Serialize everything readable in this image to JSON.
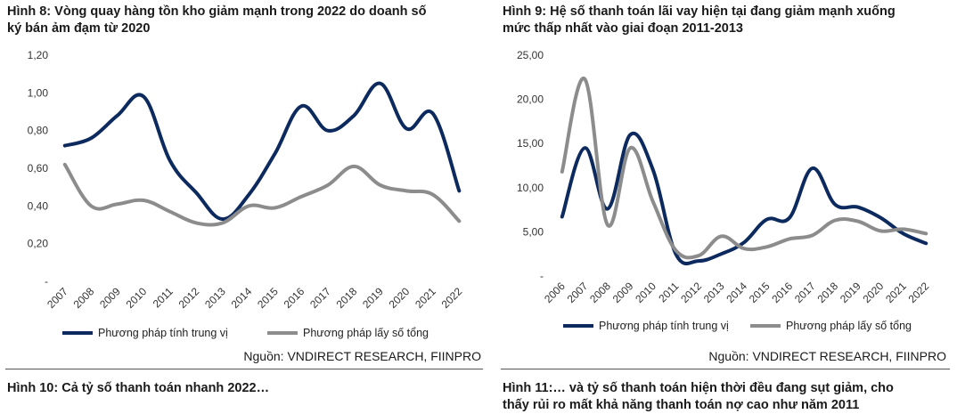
{
  "left": {
    "title_line1": "Hình 8: Vòng quay hàng tồn kho giảm mạnh trong 2022 do doanh số",
    "title_line2": "ký bán ảm đạm từ 2020",
    "source": "Nguồn: VNDIRECT RESEARCH, FIINPRO",
    "next_title": "Hình 10: Cả tỷ số thanh toán nhanh 2022…"
  },
  "right": {
    "title_line1": "Hình 9: Hệ số thanh toán lãi vay hiện tại đang giảm mạnh xuống",
    "title_line2": "mức thấp nhất vào giai đoạn 2011-2013",
    "source": "Nguồn: VNDIRECT RESEARCH, FIINPRO",
    "next_title_line1": "Hình 11:… và tỷ số thanh toán hiện thời đều đang sụt giảm, cho",
    "next_title_line2": "thấy rủi ro mất khả năng thanh toán nợ cao như năm 2011"
  },
  "colors": {
    "median": "#0d2a5f",
    "aggregate": "#8c8c8c"
  },
  "chart_data": [
    {
      "type": "line",
      "x": [
        "2007",
        "2008",
        "2009",
        "2010",
        "2011",
        "2012",
        "2013",
        "2014",
        "2015",
        "2016",
        "2017",
        "2018",
        "2019",
        "2020",
        "2021",
        "2022"
      ],
      "series": [
        {
          "name": "Phương pháp tính trung vị",
          "values": [
            0.72,
            0.76,
            0.88,
            0.98,
            0.64,
            0.47,
            0.33,
            0.46,
            0.68,
            0.93,
            0.8,
            0.88,
            1.05,
            0.81,
            0.89,
            0.48
          ]
        },
        {
          "name": "Phương pháp lấy số tổng",
          "values": [
            0.62,
            0.4,
            0.41,
            0.43,
            0.37,
            0.31,
            0.31,
            0.4,
            0.39,
            0.45,
            0.51,
            0.61,
            0.51,
            0.48,
            0.46,
            0.32
          ]
        }
      ],
      "yticks": [
        "-",
        "0,20",
        "0,40",
        "0,60",
        "0,80",
        "1,00",
        "1,20"
      ],
      "ylim": [
        0,
        1.2
      ],
      "grid": false,
      "legend": "bottom"
    },
    {
      "type": "line",
      "x": [
        "2006",
        "2007",
        "2008",
        "2009",
        "2010",
        "2011",
        "2012",
        "2013",
        "2014",
        "2015",
        "2016",
        "2017",
        "2018",
        "2019",
        "2020",
        "2021",
        "2022"
      ],
      "series": [
        {
          "name": "Phương pháp tính trung vị",
          "values": [
            6.7,
            14.5,
            7.6,
            16.0,
            12.0,
            2.5,
            1.7,
            2.5,
            3.8,
            6.4,
            6.6,
            12.2,
            8.1,
            7.8,
            6.6,
            4.8,
            3.7
          ]
        },
        {
          "name": "Phương pháp lấy số tổng",
          "values": [
            11.8,
            22.3,
            5.8,
            14.5,
            8.4,
            2.9,
            2.3,
            4.5,
            3.1,
            3.3,
            4.2,
            4.6,
            6.3,
            6.2,
            5.1,
            5.3,
            4.8
          ]
        }
      ],
      "yticks": [
        "-",
        "5,00",
        "10,00",
        "15,00",
        "20,00",
        "25,00"
      ],
      "ylim": [
        0,
        25
      ],
      "grid": false,
      "legend": "bottom"
    }
  ]
}
